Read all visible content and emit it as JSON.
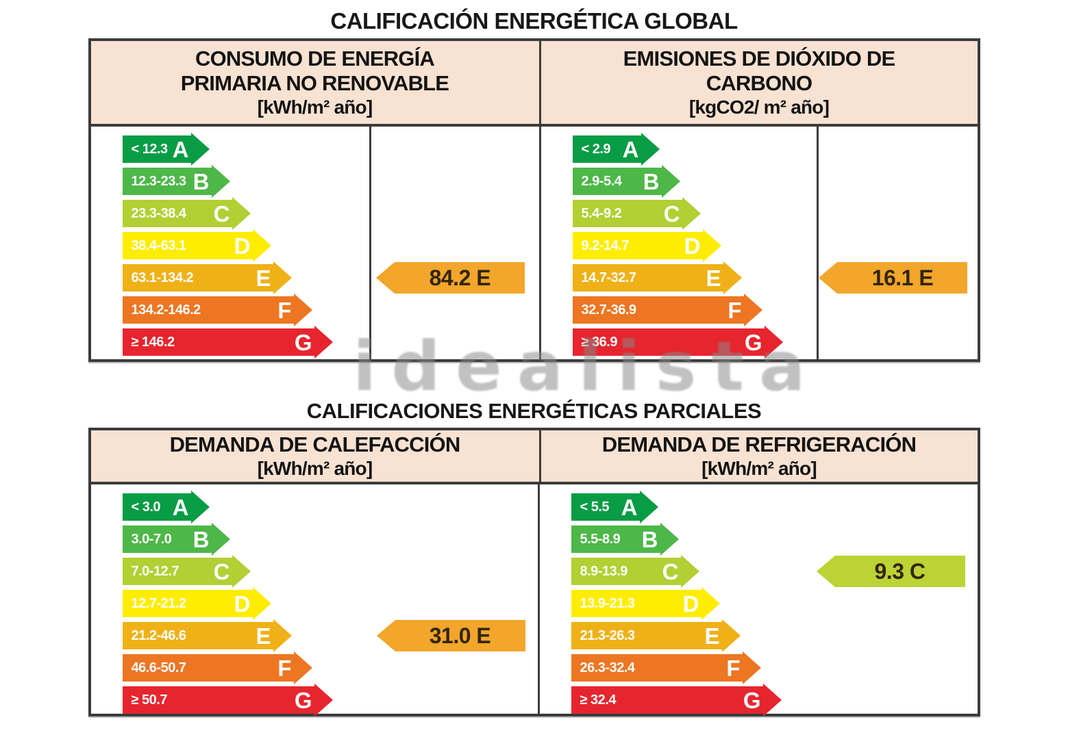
{
  "watermark": "idealista",
  "colors": {
    "grade_A": "#089c45",
    "grade_B": "#4db748",
    "grade_C": "#b2cf34",
    "grade_D": "#ffed00",
    "grade_E": "#efb117",
    "grade_F": "#ed7622",
    "grade_G": "#e6252e",
    "value_arrow_E": "#f2a62b",
    "value_arrow_C": "#bcd335",
    "header_bg": "#f8e2d2",
    "table_border": "#3b3b3b"
  },
  "global_section": {
    "title": "CALIFICACIÓN ENERGÉTICA GLOBAL",
    "panels": [
      {
        "title_line1": "CONSUMO DE ENERGÍA",
        "title_line2": "PRIMARIA NO RENOVABLE",
        "unit": "[kWh/m² año]",
        "scale": [
          {
            "grade": "A",
            "range": "< 12.3",
            "color": "#089c45"
          },
          {
            "grade": "B",
            "range": "12.3-23.3",
            "color": "#4db748"
          },
          {
            "grade": "C",
            "range": "23.3-38.4",
            "color": "#b2cf34"
          },
          {
            "grade": "D",
            "range": "38.4-63.1",
            "color": "#ffed00"
          },
          {
            "grade": "E",
            "range": "63.1-134.2",
            "color": "#efb117"
          },
          {
            "grade": "F",
            "range": "134.2-146.2",
            "color": "#ed7622"
          },
          {
            "grade": "G",
            "range": "≥ 146.2",
            "color": "#e6252e"
          }
        ],
        "value": {
          "label": "84.2 E",
          "grade": "E",
          "color": "#f2a62b"
        }
      },
      {
        "title_line1": "EMISIONES DE DIÓXIDO DE",
        "title_line2": "CARBONO",
        "unit": "[kgCO2/ m² año]",
        "scale": [
          {
            "grade": "A",
            "range": "< 2.9",
            "color": "#089c45"
          },
          {
            "grade": "B",
            "range": "2.9-5.4",
            "color": "#4db748"
          },
          {
            "grade": "C",
            "range": "5.4-9.2",
            "color": "#b2cf34"
          },
          {
            "grade": "D",
            "range": "9.2-14.7",
            "color": "#ffed00"
          },
          {
            "grade": "E",
            "range": "14.7-32.7",
            "color": "#efb117"
          },
          {
            "grade": "F",
            "range": "32.7-36.9",
            "color": "#ed7622"
          },
          {
            "grade": "G",
            "range": "≥ 36.9",
            "color": "#e6252e"
          }
        ],
        "value": {
          "label": "16.1 E",
          "grade": "E",
          "color": "#f2a62b"
        }
      }
    ]
  },
  "partial_section": {
    "title": "CALIFICACIONES ENERGÉTICAS PARCIALES",
    "panels": [
      {
        "title_line1": "DEMANDA DE CALEFACCIÓN",
        "unit": "[kWh/m² año]",
        "scale": [
          {
            "grade": "A",
            "range": "< 3.0",
            "color": "#089c45"
          },
          {
            "grade": "B",
            "range": "3.0-7.0",
            "color": "#4db748"
          },
          {
            "grade": "C",
            "range": "7.0-12.7",
            "color": "#b2cf34"
          },
          {
            "grade": "D",
            "range": "12.7-21.2",
            "color": "#ffed00"
          },
          {
            "grade": "E",
            "range": "21.2-46.6",
            "color": "#efb117"
          },
          {
            "grade": "F",
            "range": "46.6-50.7",
            "color": "#ed7622"
          },
          {
            "grade": "G",
            "range": "≥ 50.7",
            "color": "#e6252e"
          }
        ],
        "value": {
          "label": "31.0 E",
          "grade": "E",
          "color": "#f2a62b"
        }
      },
      {
        "title_line1": "DEMANDA DE REFRIGERACIÓN",
        "unit": "[kWh/m² año]",
        "scale": [
          {
            "grade": "A",
            "range": "< 5.5",
            "color": "#089c45"
          },
          {
            "grade": "B",
            "range": "5.5-8.9",
            "color": "#4db748"
          },
          {
            "grade": "C",
            "range": "8.9-13.9",
            "color": "#b2cf34"
          },
          {
            "grade": "D",
            "range": "13.9-21.3",
            "color": "#ffed00"
          },
          {
            "grade": "E",
            "range": "21.3-26.3",
            "color": "#efb117"
          },
          {
            "grade": "F",
            "range": "26.3-32.4",
            "color": "#ed7622"
          },
          {
            "grade": "G",
            "range": "≥ 32.4",
            "color": "#e6252e"
          }
        ],
        "value": {
          "label": "9.3 C",
          "grade": "C",
          "color": "#bcd335"
        }
      }
    ]
  },
  "chart_data": [
    {
      "type": "bar",
      "title": "CONSUMO DE ENERGÍA PRIMARIA NO RENOVABLE",
      "unit": "kWh/m² año",
      "categories": [
        "A",
        "B",
        "C",
        "D",
        "E",
        "F",
        "G"
      ],
      "ranges": [
        "< 12.3",
        "12.3-23.3",
        "23.3-38.4",
        "38.4-63.1",
        "63.1-134.2",
        "134.2-146.2",
        "≥ 146.2"
      ],
      "rated_value": 84.2,
      "rated_grade": "E"
    },
    {
      "type": "bar",
      "title": "EMISIONES DE DIÓXIDO DE CARBONO",
      "unit": "kgCO2/ m² año",
      "categories": [
        "A",
        "B",
        "C",
        "D",
        "E",
        "F",
        "G"
      ],
      "ranges": [
        "< 2.9",
        "2.9-5.4",
        "5.4-9.2",
        "9.2-14.7",
        "14.7-32.7",
        "32.7-36.9",
        "≥ 36.9"
      ],
      "rated_value": 16.1,
      "rated_grade": "E"
    },
    {
      "type": "bar",
      "title": "DEMANDA DE CALEFACCIÓN",
      "unit": "kWh/m² año",
      "categories": [
        "A",
        "B",
        "C",
        "D",
        "E",
        "F",
        "G"
      ],
      "ranges": [
        "< 3.0",
        "3.0-7.0",
        "7.0-12.7",
        "12.7-21.2",
        "21.2-46.6",
        "46.6-50.7",
        "≥ 50.7"
      ],
      "rated_value": 31.0,
      "rated_grade": "E"
    },
    {
      "type": "bar",
      "title": "DEMANDA DE REFRIGERACIÓN",
      "unit": "kWh/m² año",
      "categories": [
        "A",
        "B",
        "C",
        "D",
        "E",
        "F",
        "G"
      ],
      "ranges": [
        "< 5.5",
        "5.5-8.9",
        "8.9-13.9",
        "13.9-21.3",
        "21.3-26.3",
        "26.3-32.4",
        "≥ 32.4"
      ],
      "rated_value": 9.3,
      "rated_grade": "C"
    }
  ]
}
